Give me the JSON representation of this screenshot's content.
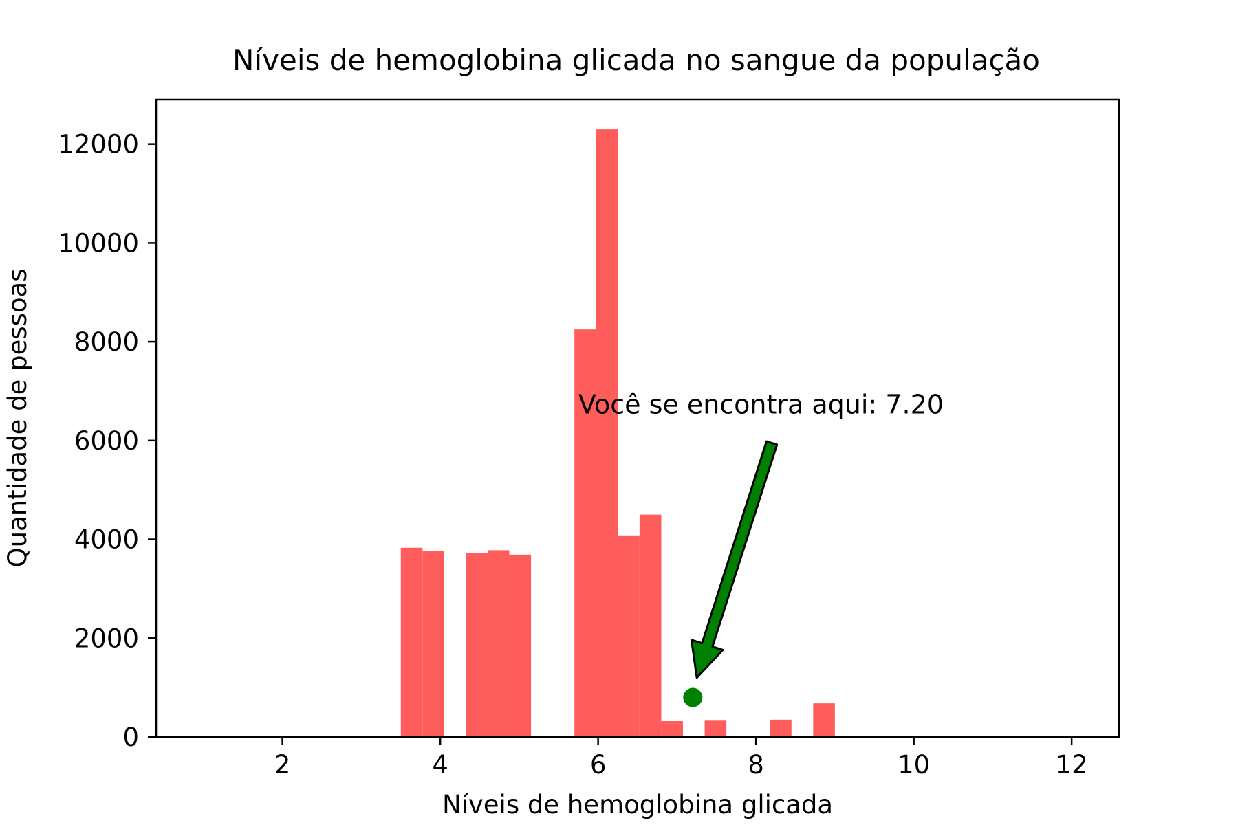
{
  "chart_data": {
    "type": "bar",
    "title": "Níveis de hemoglobina glicada no sangue da população",
    "xlabel": "Níveis de hemoglobina glicada",
    "ylabel": "Quantidade de pessoas",
    "xlim": [
      0.4,
      12.6
    ],
    "ylim": [
      0,
      12900
    ],
    "xticks": [
      2,
      4,
      6,
      8,
      10,
      12
    ],
    "yticks": [
      0,
      2000,
      4000,
      6000,
      8000,
      10000,
      12000
    ],
    "grid": false,
    "bar_color": "#ff5c5c",
    "bin_width": 0.275,
    "bars": [
      {
        "x0": 3.5,
        "value": 3830
      },
      {
        "x0": 3.775,
        "value": 3760
      },
      {
        "x0": 4.325,
        "value": 3730
      },
      {
        "x0": 4.6,
        "value": 3780
      },
      {
        "x0": 4.875,
        "value": 3690
      },
      {
        "x0": 5.7,
        "value": 8250
      },
      {
        "x0": 5.975,
        "value": 12300
      },
      {
        "x0": 6.25,
        "value": 4080
      },
      {
        "x0": 6.525,
        "value": 4500
      },
      {
        "x0": 6.8,
        "value": 320
      },
      {
        "x0": 7.35,
        "value": 330
      },
      {
        "x0": 8.175,
        "value": 350
      },
      {
        "x0": 8.725,
        "value": 680
      }
    ],
    "baseline": {
      "x_start": 0.7,
      "x_end": 11.75,
      "value": 0,
      "color": "#1f77b4"
    },
    "marker": {
      "x": 7.2,
      "y": 800,
      "color": "#008000"
    },
    "annotation": {
      "text": "Você se encontra aqui: 7.20",
      "color": "#008000",
      "text_x": 5.75,
      "text_y": 6550,
      "arrow_from": [
        8.2,
        5950
      ],
      "arrow_to": [
        7.25,
        1200
      ],
      "arrow_fill": "#008000"
    }
  }
}
